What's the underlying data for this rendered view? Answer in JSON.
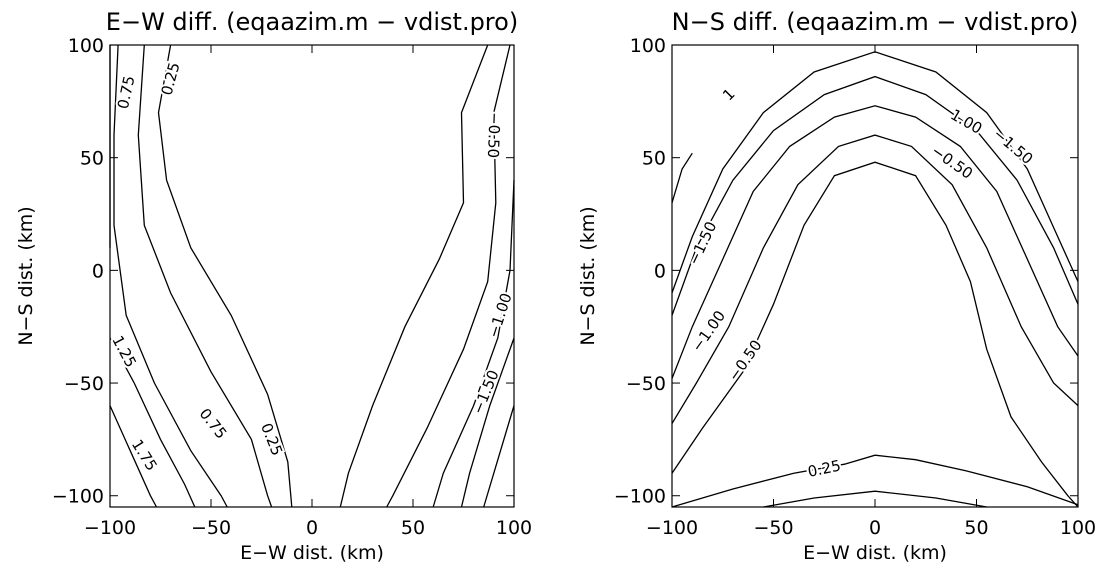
{
  "chart_data": [
    {
      "type": "contour",
      "title": "E−W diff. (eqaazim.m − vdist.pro)",
      "xlabel": "E−W dist. (km)",
      "ylabel": "N−S dist. (km)",
      "xlim": [
        -100,
        100
      ],
      "ylim": [
        -105,
        100
      ],
      "xticks": [
        -100,
        -50,
        0,
        50,
        100
      ],
      "xtick_labels": [
        "−100",
        "−50",
        "0",
        "50",
        "100"
      ],
      "yticks": [
        -100,
        -50,
        0,
        50,
        100
      ],
      "ytick_labels": [
        "−100",
        "−50",
        "0",
        "50",
        "100"
      ],
      "grid": false,
      "contours": [
        {
          "points": [
            [
              -100,
              10
            ],
            [
              -100,
              100
            ]
          ]
        },
        {
          "points": [
            [
              -100,
              -30
            ],
            [
              -88,
              -50
            ],
            [
              -75,
              -75
            ],
            [
              -63,
              -95
            ],
            [
              -58,
              -105
            ]
          ]
        },
        {
          "points": [
            [
              -100,
              -60
            ],
            [
              -90,
              -80
            ],
            [
              -80,
              -100
            ],
            [
              -77,
              -105
            ]
          ]
        },
        {
          "points": [
            [
              -96,
              100
            ],
            [
              -98,
              60
            ],
            [
              -98,
              20
            ],
            [
              -92,
              -20
            ],
            [
              -78,
              -50
            ],
            [
              -60,
              -80
            ],
            [
              -45,
              -100
            ],
            [
              -42,
              -105
            ]
          ]
        },
        {
          "points": [
            [
              -83,
              100
            ],
            [
              -86,
              60
            ],
            [
              -83,
              20
            ],
            [
              -70,
              -10
            ],
            [
              -50,
              -45
            ],
            [
              -30,
              -75
            ],
            [
              -22,
              -100
            ],
            [
              -20,
              -105
            ]
          ]
        },
        {
          "points": [
            [
              -70,
              100
            ],
            [
              -76,
              70
            ],
            [
              -72,
              40
            ],
            [
              -60,
              10
            ],
            [
              -40,
              -20
            ],
            [
              -22,
              -55
            ],
            [
              -12,
              -85
            ],
            [
              -10,
              -105
            ]
          ]
        },
        {
          "points": [
            [
              87,
              100
            ],
            [
              74,
              70
            ],
            [
              75,
              30
            ],
            [
              63,
              5
            ],
            [
              46,
              -25
            ],
            [
              30,
              -60
            ],
            [
              18,
              -90
            ],
            [
              14,
              -105
            ]
          ]
        },
        {
          "points": [
            [
              98,
              100
            ],
            [
              90,
              70
            ],
            [
              91,
              30
            ],
            [
              87,
              -5
            ],
            [
              75,
              -35
            ],
            [
              57,
              -70
            ],
            [
              40,
              -100
            ],
            [
              37,
              -105
            ]
          ]
        },
        {
          "points": [
            [
              100,
              40
            ],
            [
              98,
              0
            ],
            [
              92,
              -30
            ],
            [
              80,
              -60
            ],
            [
              65,
              -90
            ],
            [
              60,
              -105
            ]
          ]
        },
        {
          "points": [
            [
              100,
              -30
            ],
            [
              88,
              -60
            ],
            [
              78,
              -90
            ],
            [
              74,
              -105
            ]
          ]
        },
        {
          "points": [
            [
              100,
              -60
            ],
            [
              90,
              -90
            ],
            [
              85,
              -105
            ]
          ]
        }
      ],
      "contour_labels": [
        {
          "text": "0.25",
          "x": -70,
          "y": 85,
          "angle": -75
        },
        {
          "text": "0.75",
          "x": -92,
          "y": 79,
          "angle": -78
        },
        {
          "text": "−0.50",
          "x": 90,
          "y": 60,
          "angle": 92
        },
        {
          "text": "−1.00",
          "x": 93,
          "y": -20,
          "angle": -72
        },
        {
          "text": "−1.50",
          "x": 86,
          "y": -54,
          "angle": -68
        },
        {
          "text": "1.25",
          "x": -93,
          "y": -36,
          "angle": 62
        },
        {
          "text": "1.75",
          "x": -83,
          "y": -82,
          "angle": 58
        },
        {
          "text": "0.75",
          "x": -49,
          "y": -68,
          "angle": 52
        },
        {
          "text": "0.25",
          "x": -20,
          "y": -75,
          "angle": 68
        }
      ]
    },
    {
      "type": "contour",
      "title": "N−S diff. (eqaazim.m − vdist.pro)",
      "xlabel": "E−W dist. (km)",
      "ylabel": "N−S dist. (km)",
      "xlim": [
        -100,
        100
      ],
      "ylim": [
        -105,
        100
      ],
      "xticks": [
        -100,
        -50,
        0,
        50,
        100
      ],
      "xtick_labels": [
        "−100",
        "−50",
        "0",
        "50",
        "100"
      ],
      "yticks": [
        -100,
        -50,
        0,
        50,
        100
      ],
      "ytick_labels": [
        "−100",
        "−50",
        "0",
        "50",
        "100"
      ],
      "grid": false,
      "contours": [
        {
          "points": [
            [
              -100,
              30
            ],
            [
              -95,
              45
            ],
            [
              -90,
              52
            ]
          ]
        },
        {
          "points": [
            [
              -100,
              -10
            ],
            [
              -90,
              15
            ],
            [
              -75,
              45
            ],
            [
              -55,
              70
            ],
            [
              -30,
              88
            ],
            [
              0,
              97
            ],
            [
              30,
              88
            ],
            [
              55,
              70
            ],
            [
              75,
              45
            ],
            [
              90,
              15
            ],
            [
              100,
              -5
            ]
          ]
        },
        {
          "points": [
            [
              -100,
              -20
            ],
            [
              -88,
              10
            ],
            [
              -70,
              40
            ],
            [
              -50,
              62
            ],
            [
              -25,
              78
            ],
            [
              0,
              86
            ],
            [
              25,
              78
            ],
            [
              50,
              62
            ],
            [
              70,
              40
            ],
            [
              88,
              10
            ],
            [
              100,
              -15
            ]
          ]
        },
        {
          "points": [
            [
              -100,
              -48
            ],
            [
              -90,
              -25
            ],
            [
              -75,
              5
            ],
            [
              -60,
              35
            ],
            [
              -42,
              55
            ],
            [
              -20,
              68
            ],
            [
              0,
              73
            ],
            [
              20,
              68
            ],
            [
              42,
              55
            ],
            [
              60,
              35
            ],
            [
              75,
              5
            ],
            [
              90,
              -25
            ],
            [
              100,
              -38
            ]
          ]
        },
        {
          "points": [
            [
              -100,
              -68
            ],
            [
              -88,
              -50
            ],
            [
              -72,
              -25
            ],
            [
              -55,
              10
            ],
            [
              -38,
              38
            ],
            [
              -18,
              55
            ],
            [
              0,
              60
            ],
            [
              18,
              55
            ],
            [
              38,
              38
            ],
            [
              55,
              10
            ],
            [
              72,
              -25
            ],
            [
              88,
              -50
            ],
            [
              100,
              -60
            ]
          ]
        },
        {
          "points": [
            [
              -100,
              -90
            ],
            [
              -85,
              -70
            ],
            [
              -65,
              -45
            ],
            [
              -50,
              -15
            ],
            [
              -35,
              20
            ],
            [
              -20,
              42
            ],
            [
              0,
              48
            ],
            [
              20,
              42
            ],
            [
              35,
              20
            ],
            [
              47,
              -5
            ],
            [
              55,
              -35
            ],
            [
              67,
              -65
            ],
            [
              82,
              -85
            ],
            [
              95,
              -100
            ],
            [
              100,
              -105
            ]
          ]
        },
        {
          "points": [
            [
              -100,
              -105
            ],
            [
              -70,
              -97
            ],
            [
              -40,
              -90
            ],
            [
              -15,
              -86
            ],
            [
              0,
              -82
            ],
            [
              20,
              -84
            ],
            [
              45,
              -89
            ],
            [
              75,
              -96
            ],
            [
              100,
              -104
            ]
          ]
        },
        {
          "points": [
            [
              -55,
              -105
            ],
            [
              -30,
              -101
            ],
            [
              0,
              -98
            ],
            [
              30,
              -101
            ],
            [
              55,
              -105
            ]
          ]
        }
      ],
      "contour_labels": [
        {
          "text": "1",
          "x": -72,
          "y": 78,
          "angle": -45
        },
        {
          "text": "−1.50",
          "x": -85,
          "y": 12,
          "angle": -65
        },
        {
          "text": "−1.00",
          "x": -82,
          "y": -27,
          "angle": -55
        },
        {
          "text": "−0.50",
          "x": -64,
          "y": -40,
          "angle": -55
        },
        {
          "text": "1.00",
          "x": 45,
          "y": 66,
          "angle": 30
        },
        {
          "text": "−1.50",
          "x": 68,
          "y": 55,
          "angle": 40
        },
        {
          "text": "−0.50",
          "x": 38,
          "y": 48,
          "angle": 35
        },
        {
          "text": "0.25",
          "x": -25,
          "y": -88,
          "angle": -12
        }
      ]
    }
  ]
}
